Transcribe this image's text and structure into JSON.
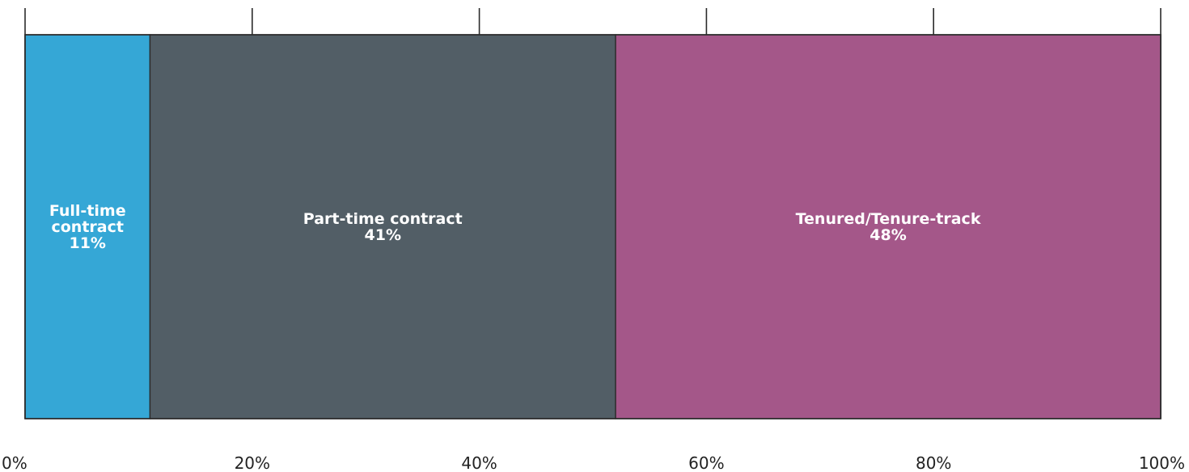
{
  "chart_data": {
    "type": "bar",
    "orientation": "horizontal",
    "stacked": true,
    "title": "",
    "xlabel": "",
    "ylabel": "",
    "xlim": [
      0,
      100
    ],
    "x_ticks": [
      0,
      20,
      40,
      60,
      80,
      100
    ],
    "x_tick_labels": [
      "0%",
      "20%",
      "40%",
      "60%",
      "80%",
      "100%"
    ],
    "grid": false,
    "legend": "none",
    "series": [
      {
        "value": 11,
        "label_lines": [
          "Full-time",
          "contract",
          "11%"
        ],
        "color": "#35a7d6"
      },
      {
        "value": 41,
        "label_lines": [
          "Part-time contract",
          "41%"
        ],
        "color": "#525e66"
      },
      {
        "value": 48,
        "label_lines": [
          "Tenured/Tenure-track",
          "48%"
        ],
        "color": "#a45789"
      }
    ]
  }
}
